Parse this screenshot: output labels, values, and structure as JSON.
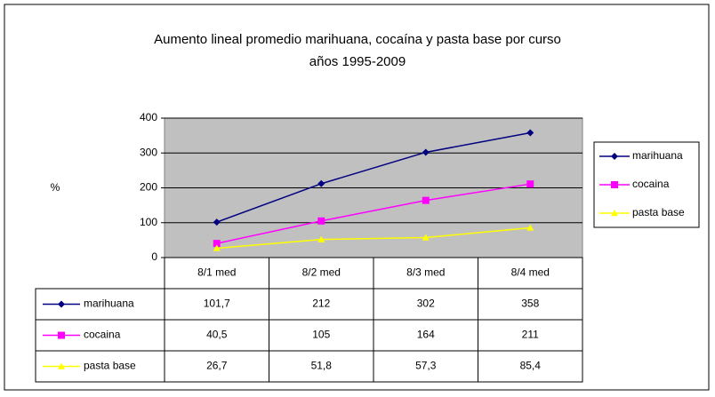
{
  "chart_data": {
    "type": "line",
    "title": [
      "Aumento lineal promedio marihuana, cocaína y pasta base por curso",
      "años 1995-2009"
    ],
    "y_label": "%",
    "categories": [
      "8/1 med",
      "8/2 med",
      "8/3 med",
      "8/4 med"
    ],
    "series": [
      {
        "name": "marihuana",
        "color": "#000080",
        "marker": "diamond",
        "values": [
          101.7,
          212,
          302,
          358
        ],
        "value_labels": [
          "101,7",
          "212",
          "302",
          "358"
        ]
      },
      {
        "name": "cocaina",
        "color": "#ff00ff",
        "marker": "square",
        "values": [
          40.5,
          105,
          164,
          211
        ],
        "value_labels": [
          "40,5",
          "105",
          "164",
          "211"
        ]
      },
      {
        "name": "pasta base",
        "color": "#ffff00",
        "marker": "triangle",
        "values": [
          26.7,
          51.8,
          57.3,
          85.4
        ],
        "value_labels": [
          "26,7",
          "51,8",
          "57,3",
          "85,4"
        ]
      }
    ],
    "ylim": [
      0,
      400
    ],
    "yticks": [
      0,
      100,
      200,
      300,
      400
    ],
    "grid": true,
    "plot_background": "#c0c0c0",
    "legend": "right"
  }
}
